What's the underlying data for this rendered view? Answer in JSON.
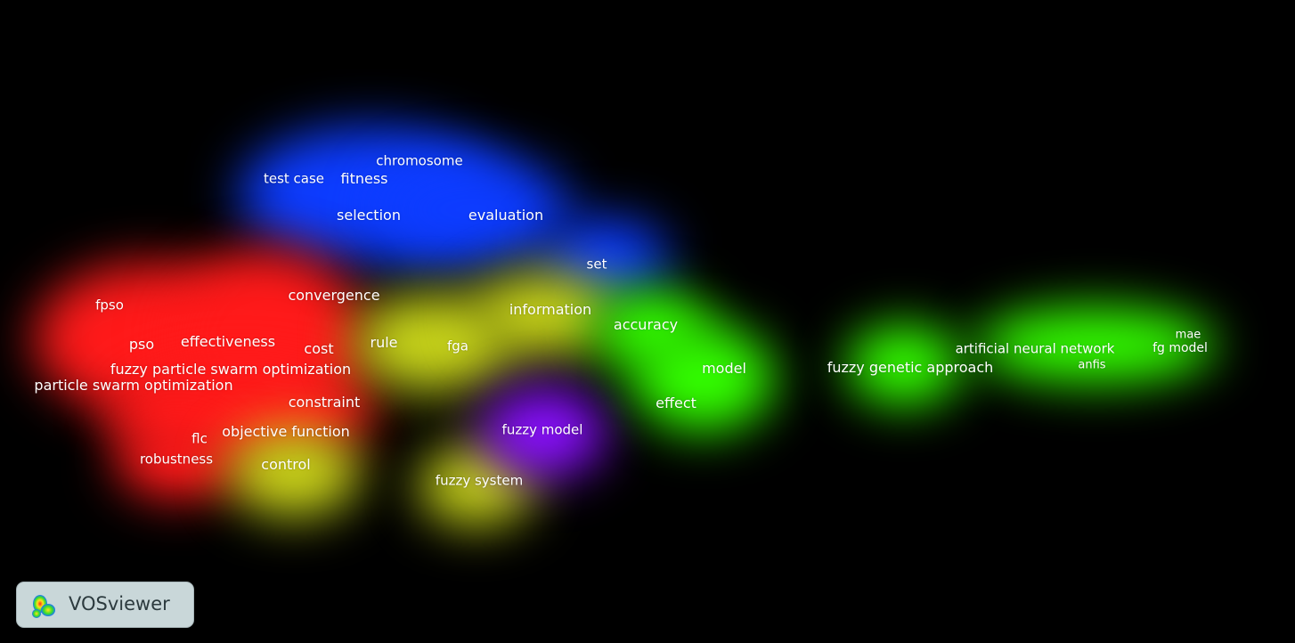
{
  "colors": {
    "background": "#000000",
    "red": "#ff1a1a",
    "yellow": "#c8d41a",
    "green": "#33ff00",
    "blue": "#0d3cff",
    "purple": "#8a10ff",
    "label": "#ffffff"
  },
  "terms": [
    {
      "id": "chromosome",
      "label": "chromosome",
      "cluster": "blue"
    },
    {
      "id": "test-case",
      "label": "test case",
      "cluster": "blue"
    },
    {
      "id": "fitness",
      "label": "fitness",
      "cluster": "blue"
    },
    {
      "id": "selection",
      "label": "selection",
      "cluster": "blue"
    },
    {
      "id": "evaluation",
      "label": "evaluation",
      "cluster": "blue"
    },
    {
      "id": "set",
      "label": "set",
      "cluster": "blue"
    },
    {
      "id": "convergence",
      "label": "convergence",
      "cluster": "red"
    },
    {
      "id": "fpso",
      "label": "fpso",
      "cluster": "red"
    },
    {
      "id": "pso",
      "label": "pso",
      "cluster": "red"
    },
    {
      "id": "effectiveness",
      "label": "effectiveness",
      "cluster": "red"
    },
    {
      "id": "cost",
      "label": "cost",
      "cluster": "red"
    },
    {
      "id": "fuzzy-particle-swarm-optimization",
      "label": "fuzzy particle swarm optimization",
      "cluster": "red"
    },
    {
      "id": "particle-swarm-optimization",
      "label": "particle swarm optimization",
      "cluster": "red"
    },
    {
      "id": "constraint",
      "label": "constraint",
      "cluster": "red"
    },
    {
      "id": "objective-function",
      "label": "objective function",
      "cluster": "red"
    },
    {
      "id": "flc",
      "label": "flc",
      "cluster": "red"
    },
    {
      "id": "robustness",
      "label": "robustness",
      "cluster": "red"
    },
    {
      "id": "information",
      "label": "information",
      "cluster": "yellow"
    },
    {
      "id": "rule",
      "label": "rule",
      "cluster": "yellow"
    },
    {
      "id": "fga",
      "label": "fga",
      "cluster": "yellow"
    },
    {
      "id": "control",
      "label": "control",
      "cluster": "yellow"
    },
    {
      "id": "fuzzy-system",
      "label": "fuzzy system",
      "cluster": "yellow"
    },
    {
      "id": "fuzzy-model",
      "label": "fuzzy model",
      "cluster": "purple"
    },
    {
      "id": "accuracy",
      "label": "accuracy",
      "cluster": "green"
    },
    {
      "id": "model",
      "label": "model",
      "cluster": "green"
    },
    {
      "id": "effect",
      "label": "effect",
      "cluster": "green"
    },
    {
      "id": "fuzzy-genetic-approach",
      "label": "fuzzy genetic approach",
      "cluster": "green"
    },
    {
      "id": "artificial-neural-network",
      "label": "artificial neural network",
      "cluster": "green"
    },
    {
      "id": "anfis",
      "label": "anfis",
      "cluster": "green"
    },
    {
      "id": "mae",
      "label": "mae",
      "cluster": "green"
    },
    {
      "id": "fg-model",
      "label": "fg model",
      "cluster": "green"
    }
  ],
  "logo": {
    "text": "VOSviewer",
    "icon": "vosviewer-density-icon"
  }
}
